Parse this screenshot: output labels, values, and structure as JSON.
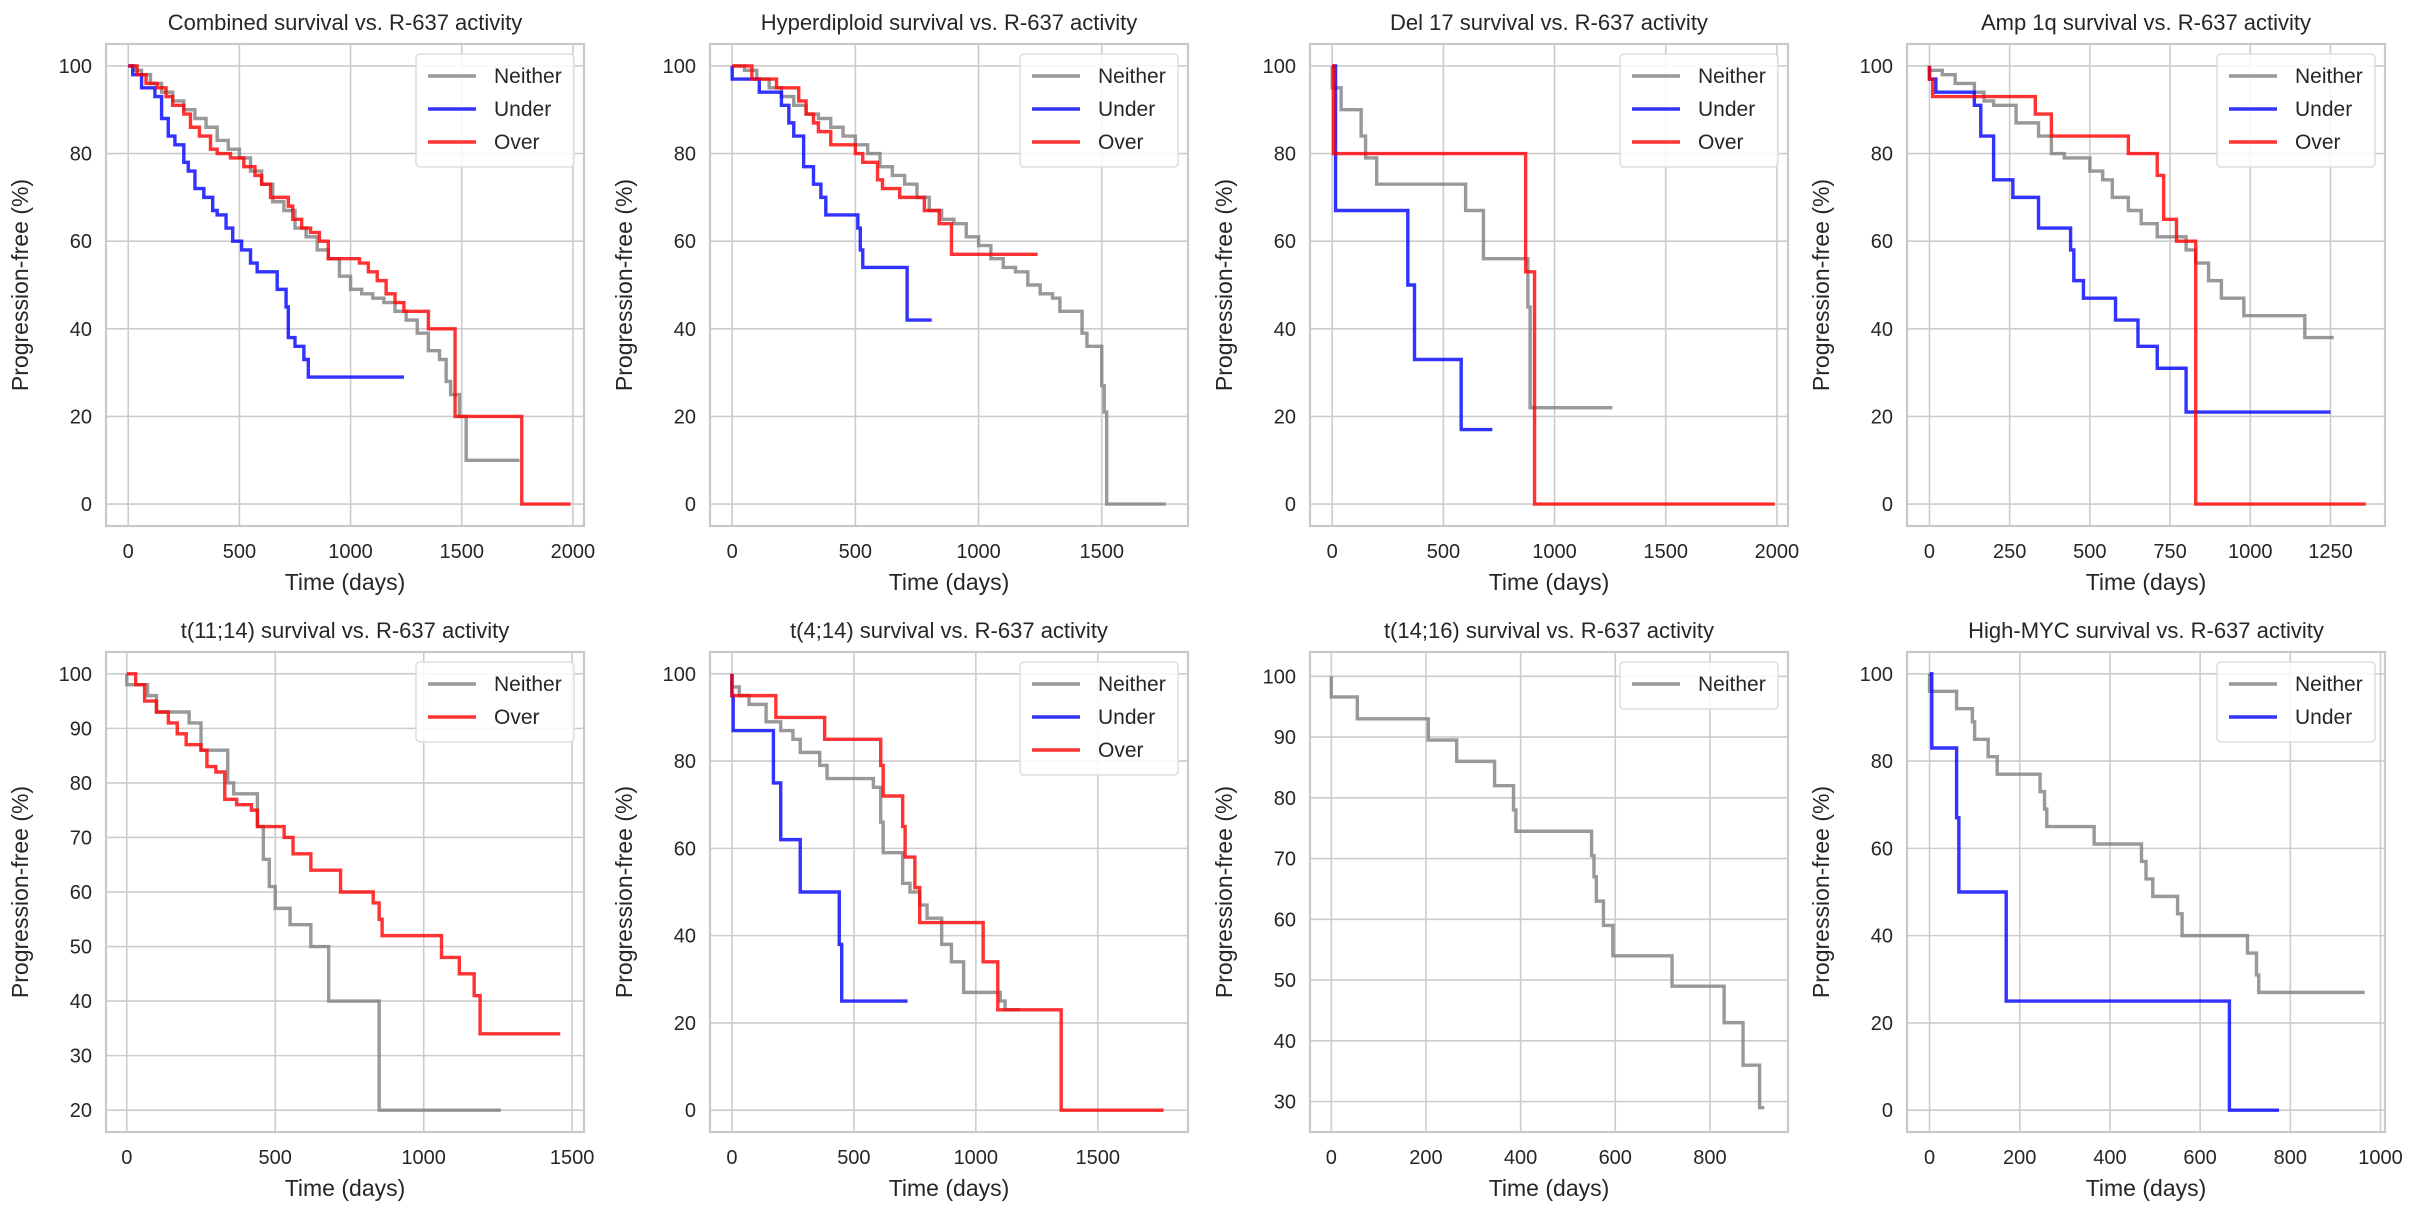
{
  "figure": {
    "colors": {
      "Neither": "#808080",
      "Under": "#0000ff",
      "Over": "#ff0000"
    }
  },
  "chart_data": [
    {
      "type": "line",
      "step": true,
      "title": "Combined survival vs. R-637 activity",
      "xlabel": "Time (days)",
      "ylabel": "Progression-free (%)",
      "xlim": [
        -100,
        2050
      ],
      "ylim": [
        -5,
        105
      ],
      "xticks": [
        0,
        500,
        1000,
        1500,
        2000
      ],
      "yticks": [
        0,
        20,
        40,
        60,
        80,
        100
      ],
      "grid": true,
      "legend": "top-right",
      "series": [
        {
          "name": "Neither",
          "x": [
            0,
            30,
            60,
            100,
            150,
            200,
            250,
            300,
            350,
            400,
            450,
            500,
            550,
            600,
            650,
            700,
            750,
            800,
            850,
            900,
            950,
            1000,
            1050,
            1100,
            1150,
            1200,
            1250,
            1300,
            1350,
            1400,
            1430,
            1450,
            1490,
            1520,
            1760
          ],
          "y": [
            100,
            99,
            98,
            96,
            94,
            92,
            90,
            88,
            86,
            83,
            81,
            79,
            76,
            73,
            69,
            67,
            63,
            61,
            58,
            56,
            52,
            49,
            48,
            47,
            46,
            44,
            42,
            39,
            35,
            33,
            28,
            25,
            20,
            10,
            10
          ]
        },
        {
          "name": "Under",
          "x": [
            0,
            20,
            60,
            120,
            150,
            180,
            210,
            250,
            270,
            300,
            340,
            380,
            400,
            440,
            470,
            510,
            550,
            580,
            630,
            670,
            710,
            720,
            750,
            790,
            810,
            1240
          ],
          "y": [
            100,
            98,
            95,
            93,
            88,
            84,
            82,
            78,
            76,
            72,
            70,
            67,
            66,
            63,
            60,
            58,
            55,
            53,
            53,
            49,
            45,
            38,
            36,
            33,
            29,
            29
          ]
        },
        {
          "name": "Over",
          "x": [
            0,
            40,
            80,
            130,
            170,
            200,
            250,
            280,
            320,
            370,
            400,
            460,
            520,
            570,
            600,
            640,
            680,
            720,
            740,
            780,
            820,
            860,
            900,
            1000,
            1040,
            1080,
            1120,
            1160,
            1200,
            1240,
            1300,
            1350,
            1450,
            1470,
            1770,
            1990
          ],
          "y": [
            100,
            98,
            96,
            95,
            93,
            91,
            89,
            86,
            84,
            81,
            80,
            79,
            77,
            75,
            73,
            70,
            70,
            68,
            65,
            63,
            62,
            60,
            56,
            56,
            55,
            53,
            51,
            48,
            46,
            44,
            44,
            40,
            40,
            20,
            0,
            0
          ]
        }
      ]
    },
    {
      "type": "line",
      "step": true,
      "title": "Hyperdiploid survival vs. R-637 activity",
      "xlabel": "Time (days)",
      "ylabel": "Progression-free (%)",
      "xlim": [
        -90,
        1850
      ],
      "ylim": [
        -5,
        105
      ],
      "xticks": [
        0,
        500,
        1000,
        1500
      ],
      "yticks": [
        0,
        20,
        40,
        60,
        80,
        100
      ],
      "grid": true,
      "legend": "top-right",
      "series": [
        {
          "name": "Neither",
          "x": [
            0,
            50,
            100,
            150,
            200,
            250,
            300,
            350,
            400,
            450,
            500,
            550,
            600,
            650,
            700,
            750,
            800,
            850,
            900,
            950,
            1000,
            1050,
            1100,
            1150,
            1200,
            1250,
            1300,
            1330,
            1420,
            1440,
            1500,
            1510,
            1520,
            1760
          ],
          "y": [
            100,
            99,
            97,
            95,
            93,
            91,
            89,
            88,
            86,
            84,
            82,
            80,
            77,
            75,
            73,
            70,
            67,
            65,
            64,
            61,
            59,
            56,
            54,
            53,
            50,
            48,
            47,
            44,
            39,
            36,
            27,
            21,
            0,
            0
          ]
        },
        {
          "name": "Under",
          "x": [
            0,
            110,
            200,
            230,
            250,
            290,
            330,
            360,
            380,
            510,
            520,
            530,
            700,
            710,
            810
          ],
          "y": [
            97,
            94,
            91,
            87,
            84,
            77,
            73,
            70,
            66,
            63,
            58,
            54,
            54,
            42,
            42
          ]
        },
        {
          "name": "Over",
          "x": [
            0,
            80,
            180,
            270,
            300,
            330,
            350,
            400,
            500,
            530,
            590,
            610,
            680,
            780,
            840,
            890,
            1240
          ],
          "y": [
            100,
            97,
            95,
            92,
            89,
            87,
            85,
            82,
            80,
            78,
            74,
            72,
            70,
            67,
            64,
            57,
            57
          ]
        }
      ]
    },
    {
      "type": "line",
      "step": true,
      "title": "Del 17 survival vs. R-637 activity",
      "xlabel": "Time (days)",
      "ylabel": "Progression-free (%)",
      "xlim": [
        -100,
        2050
      ],
      "ylim": [
        -5,
        105
      ],
      "xticks": [
        0,
        500,
        1000,
        1500,
        2000
      ],
      "yticks": [
        0,
        20,
        40,
        60,
        80,
        100
      ],
      "grid": true,
      "legend": "top-right",
      "series": [
        {
          "name": "Neither",
          "x": [
            0,
            40,
            130,
            150,
            200,
            600,
            680,
            880,
            890,
            1260
          ],
          "y": [
            95,
            90,
            84,
            79,
            73,
            67,
            56,
            45,
            22,
            22
          ]
        },
        {
          "name": "Under",
          "x": [
            0,
            15,
            340,
            370,
            580,
            720
          ],
          "y": [
            100,
            67,
            50,
            33,
            17,
            17
          ]
        },
        {
          "name": "Over",
          "x": [
            0,
            5,
            870,
            910,
            1990
          ],
          "y": [
            100,
            80,
            53,
            0,
            0
          ]
        }
      ]
    },
    {
      "type": "line",
      "step": true,
      "title": "Amp 1q survival vs. R-637 activity",
      "xlabel": "Time (days)",
      "ylabel": "Progression-free (%)",
      "xlim": [
        -70,
        1420
      ],
      "ylim": [
        -5,
        105
      ],
      "xticks": [
        0,
        250,
        500,
        750,
        1000,
        1250
      ],
      "yticks": [
        0,
        20,
        40,
        60,
        80,
        100
      ],
      "grid": true,
      "legend": "top-right",
      "series": [
        {
          "name": "Neither",
          "x": [
            0,
            40,
            80,
            140,
            170,
            200,
            270,
            340,
            380,
            420,
            500,
            540,
            570,
            620,
            660,
            710,
            800,
            830,
            870,
            910,
            980,
            1170,
            1260
          ],
          "y": [
            99,
            98,
            96,
            94,
            92,
            91,
            87,
            84,
            80,
            79,
            76,
            74,
            70,
            67,
            64,
            61,
            58,
            55,
            51,
            47,
            43,
            38,
            38
          ]
        },
        {
          "name": "Under",
          "x": [
            0,
            20,
            140,
            160,
            200,
            260,
            340,
            440,
            450,
            480,
            580,
            650,
            710,
            800,
            1250
          ],
          "y": [
            97,
            94,
            91,
            84,
            74,
            70,
            63,
            58,
            51,
            47,
            42,
            36,
            31,
            21,
            21
          ]
        },
        {
          "name": "Over",
          "x": [
            0,
            10,
            330,
            380,
            620,
            710,
            730,
            770,
            830,
            1360
          ],
          "y": [
            97,
            93,
            89,
            84,
            80,
            75,
            65,
            60,
            0,
            0
          ]
        }
      ]
    },
    {
      "type": "line",
      "step": true,
      "title": "t(11;14) survival vs. R-637 activity",
      "xlabel": "Time (days)",
      "ylabel": "Progression-free (%)",
      "xlim": [
        -70,
        1540
      ],
      "ylim": [
        16,
        104
      ],
      "xticks": [
        0,
        500,
        1000,
        1500
      ],
      "yticks": [
        20,
        30,
        40,
        50,
        60,
        70,
        80,
        90,
        100
      ],
      "grid": true,
      "legend": "top-right",
      "series": [
        {
          "name": "Neither",
          "x": [
            0,
            70,
            100,
            210,
            250,
            340,
            360,
            440,
            460,
            480,
            500,
            550,
            620,
            680,
            850,
            1260
          ],
          "y": [
            98,
            96,
            93,
            91,
            86,
            80,
            78,
            72,
            66,
            61,
            57,
            54,
            50,
            40,
            20,
            20
          ]
        },
        {
          "name": "Over",
          "x": [
            0,
            30,
            60,
            100,
            140,
            170,
            200,
            250,
            270,
            300,
            330,
            370,
            420,
            440,
            530,
            560,
            620,
            720,
            830,
            850,
            860,
            1060,
            1120,
            1170,
            1190,
            1460
          ],
          "y": [
            100,
            98,
            95,
            93,
            91,
            89,
            87,
            86,
            83,
            82,
            77,
            76,
            75,
            72,
            70,
            67,
            64,
            60,
            58,
            55,
            52,
            48,
            45,
            41,
            34,
            34
          ]
        }
      ]
    },
    {
      "type": "line",
      "step": true,
      "title": "t(4;14) survival vs. R-637 activity",
      "xlabel": "Time (days)",
      "ylabel": "Progression-free (%)",
      "xlim": [
        -90,
        1870
      ],
      "ylim": [
        -5,
        105
      ],
      "xticks": [
        0,
        500,
        1000,
        1500
      ],
      "yticks": [
        0,
        20,
        40,
        60,
        80,
        100
      ],
      "grid": true,
      "legend": "top-right",
      "series": [
        {
          "name": "Neither",
          "x": [
            0,
            30,
            70,
            140,
            200,
            250,
            280,
            360,
            390,
            580,
            610,
            620,
            700,
            730,
            770,
            800,
            860,
            900,
            950,
            1100,
            1120,
            1180
          ],
          "y": [
            97,
            95,
            93,
            89,
            87,
            85,
            82,
            79,
            76,
            74,
            66,
            59,
            52,
            50,
            47,
            44,
            38,
            34,
            27,
            25,
            23,
            23
          ]
        },
        {
          "name": "Under",
          "x": [
            0,
            5,
            170,
            200,
            280,
            440,
            450,
            720
          ],
          "y": [
            95,
            87,
            75,
            62,
            50,
            38,
            25,
            25
          ]
        },
        {
          "name": "Over",
          "x": [
            0,
            180,
            380,
            610,
            620,
            700,
            710,
            750,
            770,
            1030,
            1090,
            1350,
            1770
          ],
          "y": [
            95,
            90,
            85,
            79,
            72,
            65,
            58,
            51,
            43,
            34,
            23,
            0,
            0
          ]
        }
      ]
    },
    {
      "type": "line",
      "step": true,
      "title": "t(14;16) survival vs. R-637 activity",
      "xlabel": "Time (days)",
      "ylabel": "Progression-free (%)",
      "xlim": [
        -45,
        965
      ],
      "ylim": [
        25,
        104
      ],
      "xticks": [
        0,
        200,
        400,
        600,
        800
      ],
      "yticks": [
        30,
        40,
        50,
        60,
        70,
        80,
        90,
        100
      ],
      "grid": true,
      "legend": "top-right",
      "series": [
        {
          "name": "Neither",
          "x": [
            0,
            55,
            205,
            265,
            345,
            385,
            390,
            550,
            555,
            560,
            575,
            595,
            720,
            830,
            870,
            905,
            915
          ],
          "y": [
            96.6,
            93,
            89.5,
            86,
            82,
            78,
            74.5,
            70.5,
            67,
            63,
            59,
            54,
            49,
            43,
            36,
            29,
            29
          ]
        }
      ]
    },
    {
      "type": "line",
      "step": true,
      "title": "High-MYC survival vs. R-637 activity",
      "xlabel": "Time (days)",
      "ylabel": "Progression-free (%)",
      "xlim": [
        -50,
        1010
      ],
      "ylim": [
        -5,
        105
      ],
      "xticks": [
        0,
        200,
        400,
        600,
        800,
        1000
      ],
      "yticks": [
        0,
        20,
        40,
        60,
        80,
        100
      ],
      "grid": true,
      "legend": "top-right",
      "series": [
        {
          "name": "Neither",
          "x": [
            0,
            60,
            95,
            100,
            130,
            150,
            245,
            255,
            260,
            365,
            470,
            480,
            495,
            550,
            560,
            705,
            725,
            730,
            965
          ],
          "y": [
            96,
            92,
            89,
            85,
            81,
            77,
            73,
            69,
            65,
            61,
            57,
            53,
            49,
            45,
            40,
            36,
            31,
            27,
            27
          ]
        },
        {
          "name": "Under",
          "x": [
            0,
            5,
            60,
            65,
            170,
            665,
            775
          ],
          "y": [
            100,
            83,
            67,
            50,
            25,
            0,
            0
          ]
        }
      ]
    }
  ]
}
